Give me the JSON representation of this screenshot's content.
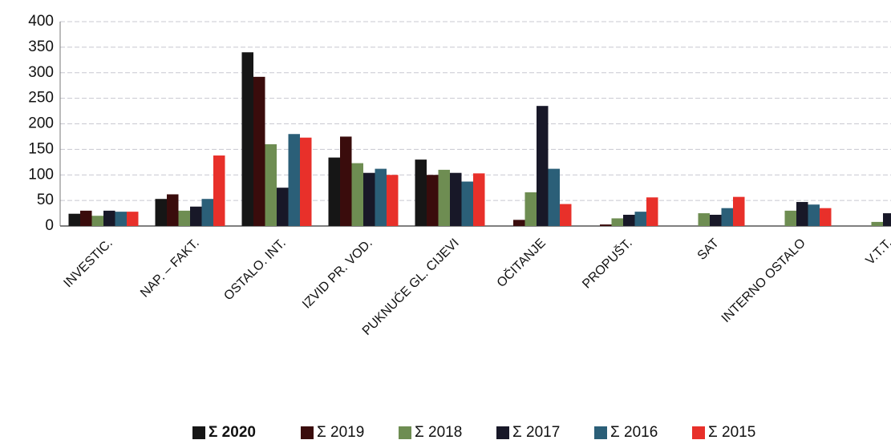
{
  "chart_data": {
    "type": "bar",
    "categories": [
      "INVESTIC.",
      "NAP. – FAKT.",
      "OSTALO. INT.",
      "IZVID PR. VOD.",
      "PUKNUĆE GL. CIJEVI",
      "OČITANJE",
      "PROPUŠT.",
      "SAT",
      "INTERNO OSTALO",
      "V.T.T."
    ],
    "series": [
      {
        "name": "Σ 2020",
        "color": "#161616",
        "values": [
          24,
          53,
          340,
          134,
          130,
          0,
          0,
          0,
          0,
          0
        ]
      },
      {
        "name": "Σ 2019",
        "color": "#3a0c0c",
        "values": [
          30,
          62,
          292,
          175,
          100,
          12,
          3,
          0,
          0,
          0
        ]
      },
      {
        "name": "Σ 2018",
        "color": "#6e8d52",
        "values": [
          20,
          30,
          160,
          123,
          110,
          66,
          15,
          25,
          30,
          8
        ]
      },
      {
        "name": "Σ 2017",
        "color": "#181828",
        "values": [
          30,
          38,
          75,
          104,
          104,
          235,
          22,
          22,
          47,
          25
        ]
      },
      {
        "name": "Σ 2016",
        "color": "#2b5f78",
        "values": [
          28,
          53,
          180,
          112,
          87,
          112,
          28,
          35,
          42,
          0
        ]
      },
      {
        "name": "Σ 2015",
        "color": "#e8302a",
        "values": [
          28,
          138,
          173,
          100,
          103,
          43,
          56,
          57,
          35,
          0
        ]
      }
    ],
    "ylim": [
      0,
      400
    ],
    "yticks": [
      0,
      50,
      100,
      150,
      200,
      250,
      300,
      350,
      400
    ],
    "grid": true
  }
}
